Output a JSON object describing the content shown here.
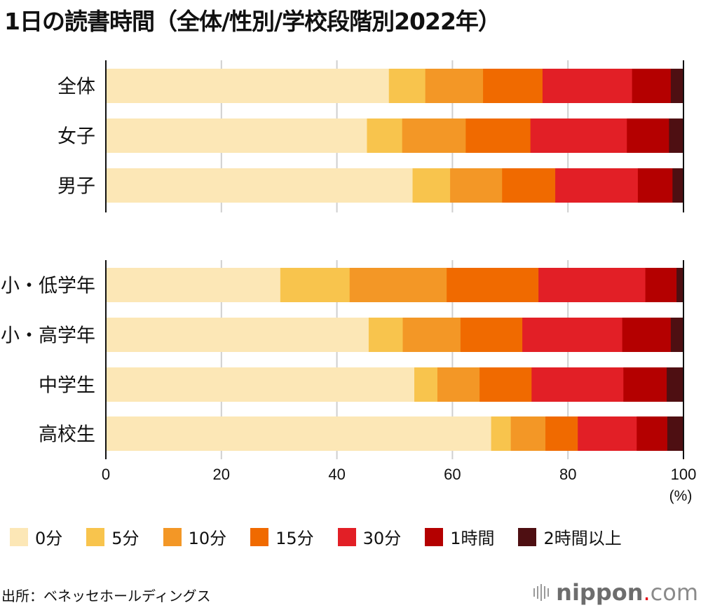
{
  "title": "1日の読書時間（全体/性別/学校段階別2022年）",
  "source": "出所：ベネッセホールディングス",
  "logo": {
    "brand": "nippon",
    "dot": ".",
    "tld": "com",
    "icon": "sound-bars-icon"
  },
  "chart_data": {
    "type": "bar",
    "orientation": "horizontal",
    "stacked": true,
    "title": "1日の読書時間（全体/性別/学校段階別2022年）",
    "xlabel": "(%)",
    "ylabel": "",
    "xlim": [
      0,
      100
    ],
    "xticks": [
      0,
      20,
      40,
      60,
      80,
      100
    ],
    "grid": true,
    "legend_position": "bottom",
    "groups": [
      {
        "categories": [
          "全体",
          "女子",
          "男子"
        ]
      },
      {
        "categories": [
          "小・低学年",
          "小・高学年",
          "中学生",
          "高校生"
        ]
      }
    ],
    "categories": [
      "全体",
      "女子",
      "男子",
      "小・低学年",
      "小・高学年",
      "中学生",
      "高校生"
    ],
    "series": [
      {
        "name": "0分",
        "color": "#fce7b6",
        "values": [
          49.0,
          45.2,
          53.1,
          30.2,
          45.5,
          53.4,
          66.7
        ]
      },
      {
        "name": "5分",
        "color": "#f8c44d",
        "values": [
          6.3,
          6.1,
          6.5,
          12.0,
          5.9,
          4.0,
          3.4
        ]
      },
      {
        "name": "10分",
        "color": "#f39726",
        "values": [
          10.0,
          11.0,
          9.0,
          16.8,
          10.0,
          7.3,
          6.0
        ]
      },
      {
        "name": "15分",
        "color": "#f06a00",
        "values": [
          10.3,
          11.2,
          9.2,
          15.9,
          10.7,
          9.0,
          5.6
        ]
      },
      {
        "name": "30分",
        "color": "#e21f26",
        "values": [
          15.5,
          16.7,
          14.3,
          18.5,
          17.3,
          15.9,
          10.2
        ]
      },
      {
        "name": "1時間",
        "color": "#b40000",
        "values": [
          6.7,
          7.3,
          6.0,
          5.4,
          8.4,
          7.5,
          5.3
        ]
      },
      {
        "name": "2時間以上",
        "color": "#4e0f12",
        "values": [
          2.2,
          2.5,
          1.9,
          1.2,
          2.2,
          2.9,
          2.8
        ]
      }
    ]
  }
}
